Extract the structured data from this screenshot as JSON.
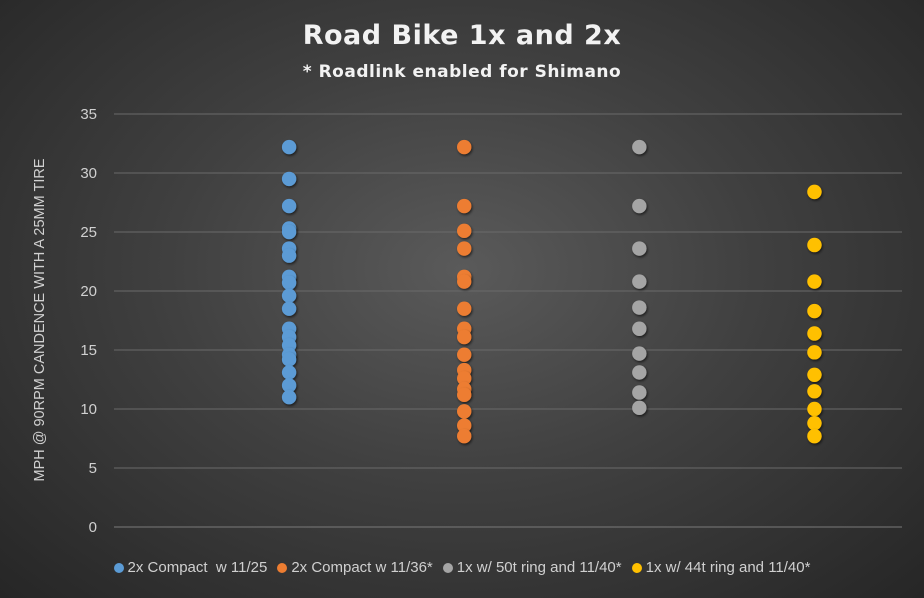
{
  "chart_data": {
    "type": "scatter",
    "title": "Road Bike 1x and 2x",
    "subtitle": "* Roadlink enabled for Shimano",
    "xlabel": "",
    "ylabel": "MPH @ 90RPM CANDENCE WITH A 25MM TIRE",
    "ylim": [
      0,
      35
    ],
    "xlim": [
      0,
      4.5
    ],
    "yticks": [
      "0",
      "5",
      "10",
      "15",
      "20",
      "25",
      "30",
      "35"
    ],
    "grid": true,
    "legend": "bottom",
    "series": [
      {
        "name": "2x Compact  w 11/25",
        "color": "#5B9BD5",
        "x": 1,
        "values": [
          32.2,
          29.5,
          27.2,
          25.3,
          25.0,
          23.6,
          23.0,
          21.2,
          20.7,
          19.6,
          18.5,
          16.8,
          16.1,
          15.4,
          14.6,
          14.2,
          13.1,
          12.0,
          11.0
        ]
      },
      {
        "name": "2x Compact w 11/36*",
        "color": "#ED7D31",
        "x": 2,
        "values": [
          32.2,
          27.2,
          25.1,
          23.6,
          21.2,
          20.8,
          18.5,
          16.8,
          16.1,
          14.6,
          13.3,
          12.6,
          11.7,
          11.2,
          9.8,
          8.6,
          7.7
        ]
      },
      {
        "name": "1x w/ 50t ring and 11/40*",
        "color": "#A5A5A5",
        "x": 3,
        "values": [
          32.2,
          27.2,
          23.6,
          20.8,
          18.6,
          16.8,
          14.7,
          13.1,
          11.4,
          10.1
        ]
      },
      {
        "name": "1x w/ 44t ring and 11/40*",
        "color": "#FFC000",
        "x": 4,
        "values": [
          28.4,
          23.9,
          20.8,
          18.3,
          16.4,
          14.8,
          12.9,
          11.5,
          10.0,
          8.8,
          7.7
        ]
      }
    ]
  }
}
